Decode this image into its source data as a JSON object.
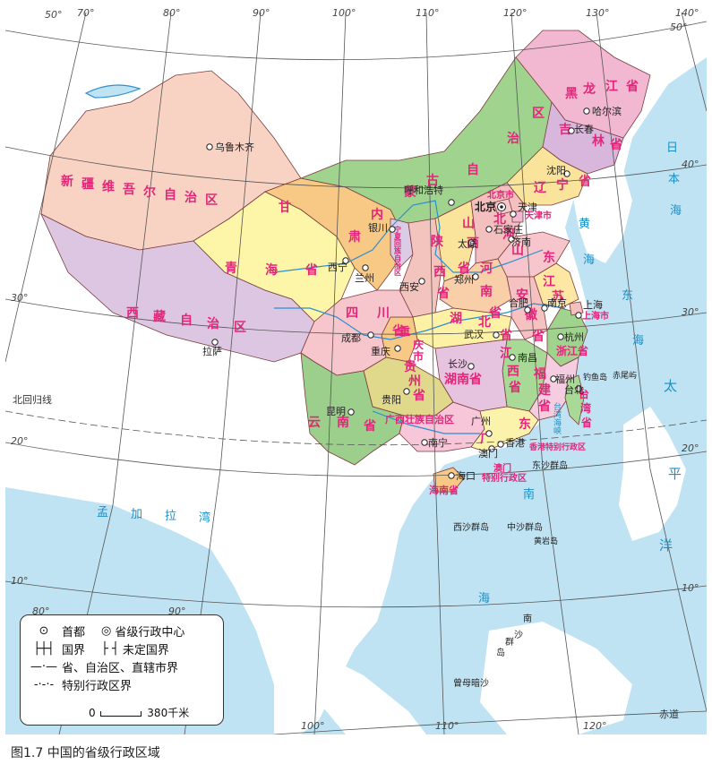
{
  "caption": "图1.7 中国的省级行政区域",
  "colors": {
    "sea": "#bfe3f3",
    "land_outside": "#ffffff",
    "graticule": "#555555",
    "province_label": "#e3267a",
    "city_label": "#222222",
    "sea_label": "#1a8fc9",
    "border": "#7a3c3c"
  },
  "graticule_labels": {
    "longitudes_top": [
      "70°",
      "80°",
      "90°",
      "100°",
      "110°",
      "120°",
      "130°",
      "140°"
    ],
    "longitudes_bottom": [
      "80°",
      "90°",
      "100°",
      "110°",
      "120°"
    ],
    "latitudes_left": [
      "50°",
      "40°",
      "30°",
      "20°",
      "10°"
    ],
    "latitudes_right": [
      "50°",
      "40°",
      "30°",
      "20°",
      "10°"
    ]
  },
  "provinces": [
    {
      "name": "新疆维吾尔自治区",
      "color": "#f8d3c4"
    },
    {
      "name": "西藏自治区",
      "color": "#ddc6e2"
    },
    {
      "name": "青海省",
      "color": "#fdf5a7"
    },
    {
      "name": "甘肃",
      "color": "#f7c984"
    },
    {
      "name": "内蒙古自治区",
      "color": "#9fd38e"
    },
    {
      "name": "黑龙江省",
      "color": "#f2b8d2"
    },
    {
      "name": "吉林省",
      "color": "#d9b7dd"
    },
    {
      "name": "辽宁省",
      "color": "#fae39a"
    },
    {
      "name": "四川省",
      "color": "#f6c6cc"
    },
    {
      "name": "云南省",
      "color": "#9ccf8b"
    },
    {
      "name": "贵州省",
      "color": "#e0d98c"
    },
    {
      "name": "广西壮族自治区",
      "color": "#f7c6d8"
    },
    {
      "name": "广东",
      "color": "#fbf3ab"
    },
    {
      "name": "湖南省",
      "color": "#e6c3df"
    },
    {
      "name": "湖北省",
      "color": "#fdf1a6"
    },
    {
      "name": "江西省",
      "color": "#a9d996"
    },
    {
      "name": "福建省",
      "color": "#f4cde0"
    },
    {
      "name": "浙江省",
      "color": "#9fd38e"
    },
    {
      "name": "安徽省",
      "color": "#f5c1c1"
    },
    {
      "name": "江苏",
      "color": "#fde7a3"
    },
    {
      "name": "山东",
      "color": "#f6c6cc"
    },
    {
      "name": "河南省",
      "color": "#f8cfa9"
    },
    {
      "name": "河北",
      "color": "#f3c0bf"
    },
    {
      "name": "山西省",
      "color": "#fae39a"
    },
    {
      "name": "陕西省",
      "color": "#f3c4bd"
    },
    {
      "name": "宁夏",
      "color": "#dccbe6"
    },
    {
      "name": "重庆市",
      "color": "#f7c984"
    },
    {
      "name": "海南省",
      "color": "#f7c984"
    },
    {
      "name": "台湾省",
      "color": "#a9d996"
    }
  ],
  "province_labels": {
    "xinjiang": [
      "新",
      "疆",
      "维",
      "吾",
      "尔",
      "自",
      "治",
      "区"
    ],
    "xizang": [
      "西",
      "藏",
      "自",
      "治",
      "区"
    ],
    "qinghai": [
      "青",
      "海",
      "省"
    ],
    "gansu": [
      "甘",
      "肃"
    ],
    "neimenggu": [
      "内",
      "蒙",
      "古",
      "自",
      "治",
      "区"
    ],
    "heilongjiang": [
      "黑",
      "龙",
      "江",
      "省"
    ],
    "jilin": [
      "吉",
      "林",
      "省"
    ],
    "liaoning": [
      "辽",
      "宁",
      "省"
    ],
    "sichuan": [
      "四",
      "川",
      "省"
    ],
    "yunnan": [
      "云",
      "南",
      "省"
    ],
    "guizhou": [
      "贵",
      "州",
      "省"
    ],
    "guangxi": "广西壮族自治区",
    "guangdong": [
      "广",
      "东"
    ],
    "hunan": "湖南省",
    "hubei": [
      "湖",
      "北",
      "省"
    ],
    "jiangxi": [
      "江",
      "西",
      "省"
    ],
    "fujian": [
      "福",
      "建",
      "省"
    ],
    "zhejiang": "浙江省",
    "anhui": [
      "安",
      "徽",
      "省"
    ],
    "jiangsu": [
      "江",
      "苏"
    ],
    "shandong": [
      "山",
      "东"
    ],
    "henan": [
      "河",
      "南",
      "省"
    ],
    "hebei": [
      "河",
      "北"
    ],
    "shanxi": [
      "山",
      "西",
      "省"
    ],
    "shaanxi": [
      "陕",
      "西",
      "省"
    ],
    "ningxia": "宁夏回族自治区",
    "chongqing": [
      "重",
      "庆",
      "市"
    ],
    "hainan": "海南省",
    "taiwan": [
      "台",
      "湾",
      "省"
    ],
    "beijing": "北京市",
    "tianjin": "天津市",
    "shanghai": "上海市",
    "hongkong": "香港特别行政区",
    "macau_1": "澳门",
    "macau_2": "特别行政区"
  },
  "cities": {
    "capital": "北京",
    "urumqi": "乌鲁木齐",
    "lhasa": "拉萨",
    "xining": "西宁",
    "lanzhou": "兰州",
    "yinchuan": "银川",
    "hohhot": "呼和浩特",
    "harbin": "哈尔滨",
    "changchun": "长春",
    "shenyang": "沈阳",
    "tianjin": "天津",
    "shijiazhuang": "石家庄",
    "taiyuan": "太原",
    "jinan": "济南",
    "zhengzhou": "郑州",
    "xian": "西安",
    "chengdu": "成都",
    "chongqing": "重庆",
    "wuhan": "武汉",
    "hefei": "合肥",
    "nanjing": "南京",
    "shanghai": "上海",
    "hangzhou": "杭州",
    "changsha": "长沙",
    "nanchang": "南昌",
    "fuzhou": "福州",
    "taipei": "台北",
    "guiyang": "贵阳",
    "kunming": "昆明",
    "nanning": "南宁",
    "guangzhou": "广州",
    "hongkong": "香港",
    "macau": "澳门",
    "haikou": "海口"
  },
  "islands": {
    "dongsha": "东沙群岛",
    "xisha": "西沙群岛",
    "zhongsha": "中沙群岛",
    "huangyan": "黄岩岛",
    "diaoyu": "钓鱼岛",
    "chiwei": "赤尾屿",
    "nansha": [
      "南",
      "沙",
      "群",
      "岛"
    ],
    "zengmu": "曾母暗沙"
  },
  "water_labels": {
    "ribenhai": [
      "日",
      "本",
      "海"
    ],
    "huanghai": [
      "黄",
      "海"
    ],
    "donghai": [
      "东",
      "海"
    ],
    "taiping": [
      "太",
      "平",
      "洋"
    ],
    "taiwan_strait": "台湾海峡",
    "bengal": [
      "孟",
      "加",
      "拉",
      "湾"
    ],
    "nanhai": [
      "南",
      "海"
    ]
  },
  "line_labels": {
    "tropic": "北回归线",
    "equator": "赤道"
  },
  "legend": {
    "capital": "首都",
    "provincial_center": "省级行政中心",
    "national_border": "国界",
    "undefined_border": "未定国界",
    "provincial_border": "省、自治区、直辖市界",
    "sar_border": "特别行政区界",
    "scale_zero": "0",
    "scale_value": "380千米"
  }
}
